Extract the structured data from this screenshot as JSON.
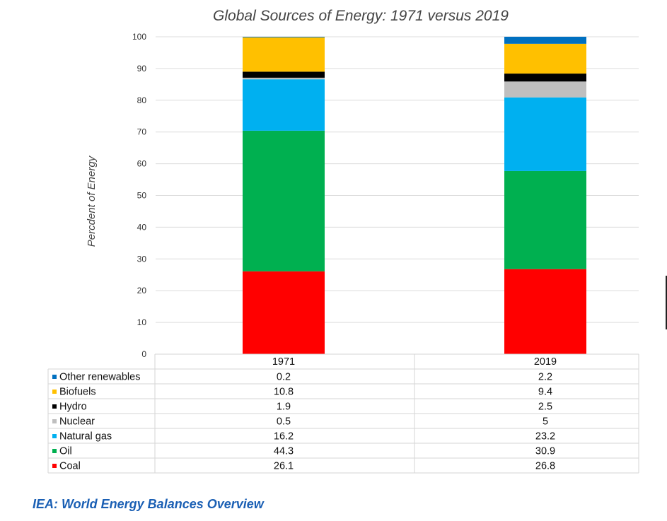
{
  "chart_data": {
    "type": "bar",
    "stacked": true,
    "title": "Global Sources of Energy: 1971 versus 2019",
    "ylabel": "Percdent of Energy",
    "xlabel": "",
    "ylim": [
      0,
      100
    ],
    "y_ticks": [
      0,
      10,
      20,
      30,
      40,
      50,
      60,
      70,
      80,
      90,
      100
    ],
    "categories": [
      "1971",
      "2019"
    ],
    "grid": true,
    "legend_placement": "data table below chart",
    "series": [
      {
        "name": "Coal",
        "color": "#ff0000",
        "values": [
          26.1,
          26.8
        ]
      },
      {
        "name": "Oil",
        "color": "#00b050",
        "values": [
          44.3,
          30.9
        ]
      },
      {
        "name": "Natural gas",
        "color": "#00b0f0",
        "values": [
          16.2,
          23.2
        ]
      },
      {
        "name": "Nuclear",
        "color": "#bfbfbf",
        "values": [
          0.5,
          5
        ]
      },
      {
        "name": "Hydro",
        "color": "#000000",
        "values": [
          1.9,
          2.5
        ]
      },
      {
        "name": "Biofuels",
        "color": "#ffc000",
        "values": [
          10.8,
          9.4
        ]
      },
      {
        "name": "Other renewables",
        "color": "#0070c0",
        "values": [
          0.2,
          2.2
        ]
      }
    ],
    "table_rows": [
      {
        "name": "Other renewables",
        "color": "#0070c0",
        "values": [
          "0.2",
          "2.2"
        ]
      },
      {
        "name": "Biofuels",
        "color": "#ffc000",
        "values": [
          "10.8",
          "9.4"
        ]
      },
      {
        "name": "Hydro",
        "color": "#000000",
        "values": [
          "1.9",
          "2.5"
        ]
      },
      {
        "name": "Nuclear",
        "color": "#bfbfbf",
        "values": [
          "0.5",
          "5"
        ]
      },
      {
        "name": "Natural gas",
        "color": "#00b0f0",
        "values": [
          "16.2",
          "23.2"
        ]
      },
      {
        "name": "Oil",
        "color": "#00b050",
        "values": [
          "44.3",
          "30.9"
        ]
      },
      {
        "name": "Coal",
        "color": "#ff0000",
        "values": [
          "26.1",
          "26.8"
        ]
      }
    ]
  },
  "source": {
    "label": "IEA: World Energy Balances Overview"
  }
}
